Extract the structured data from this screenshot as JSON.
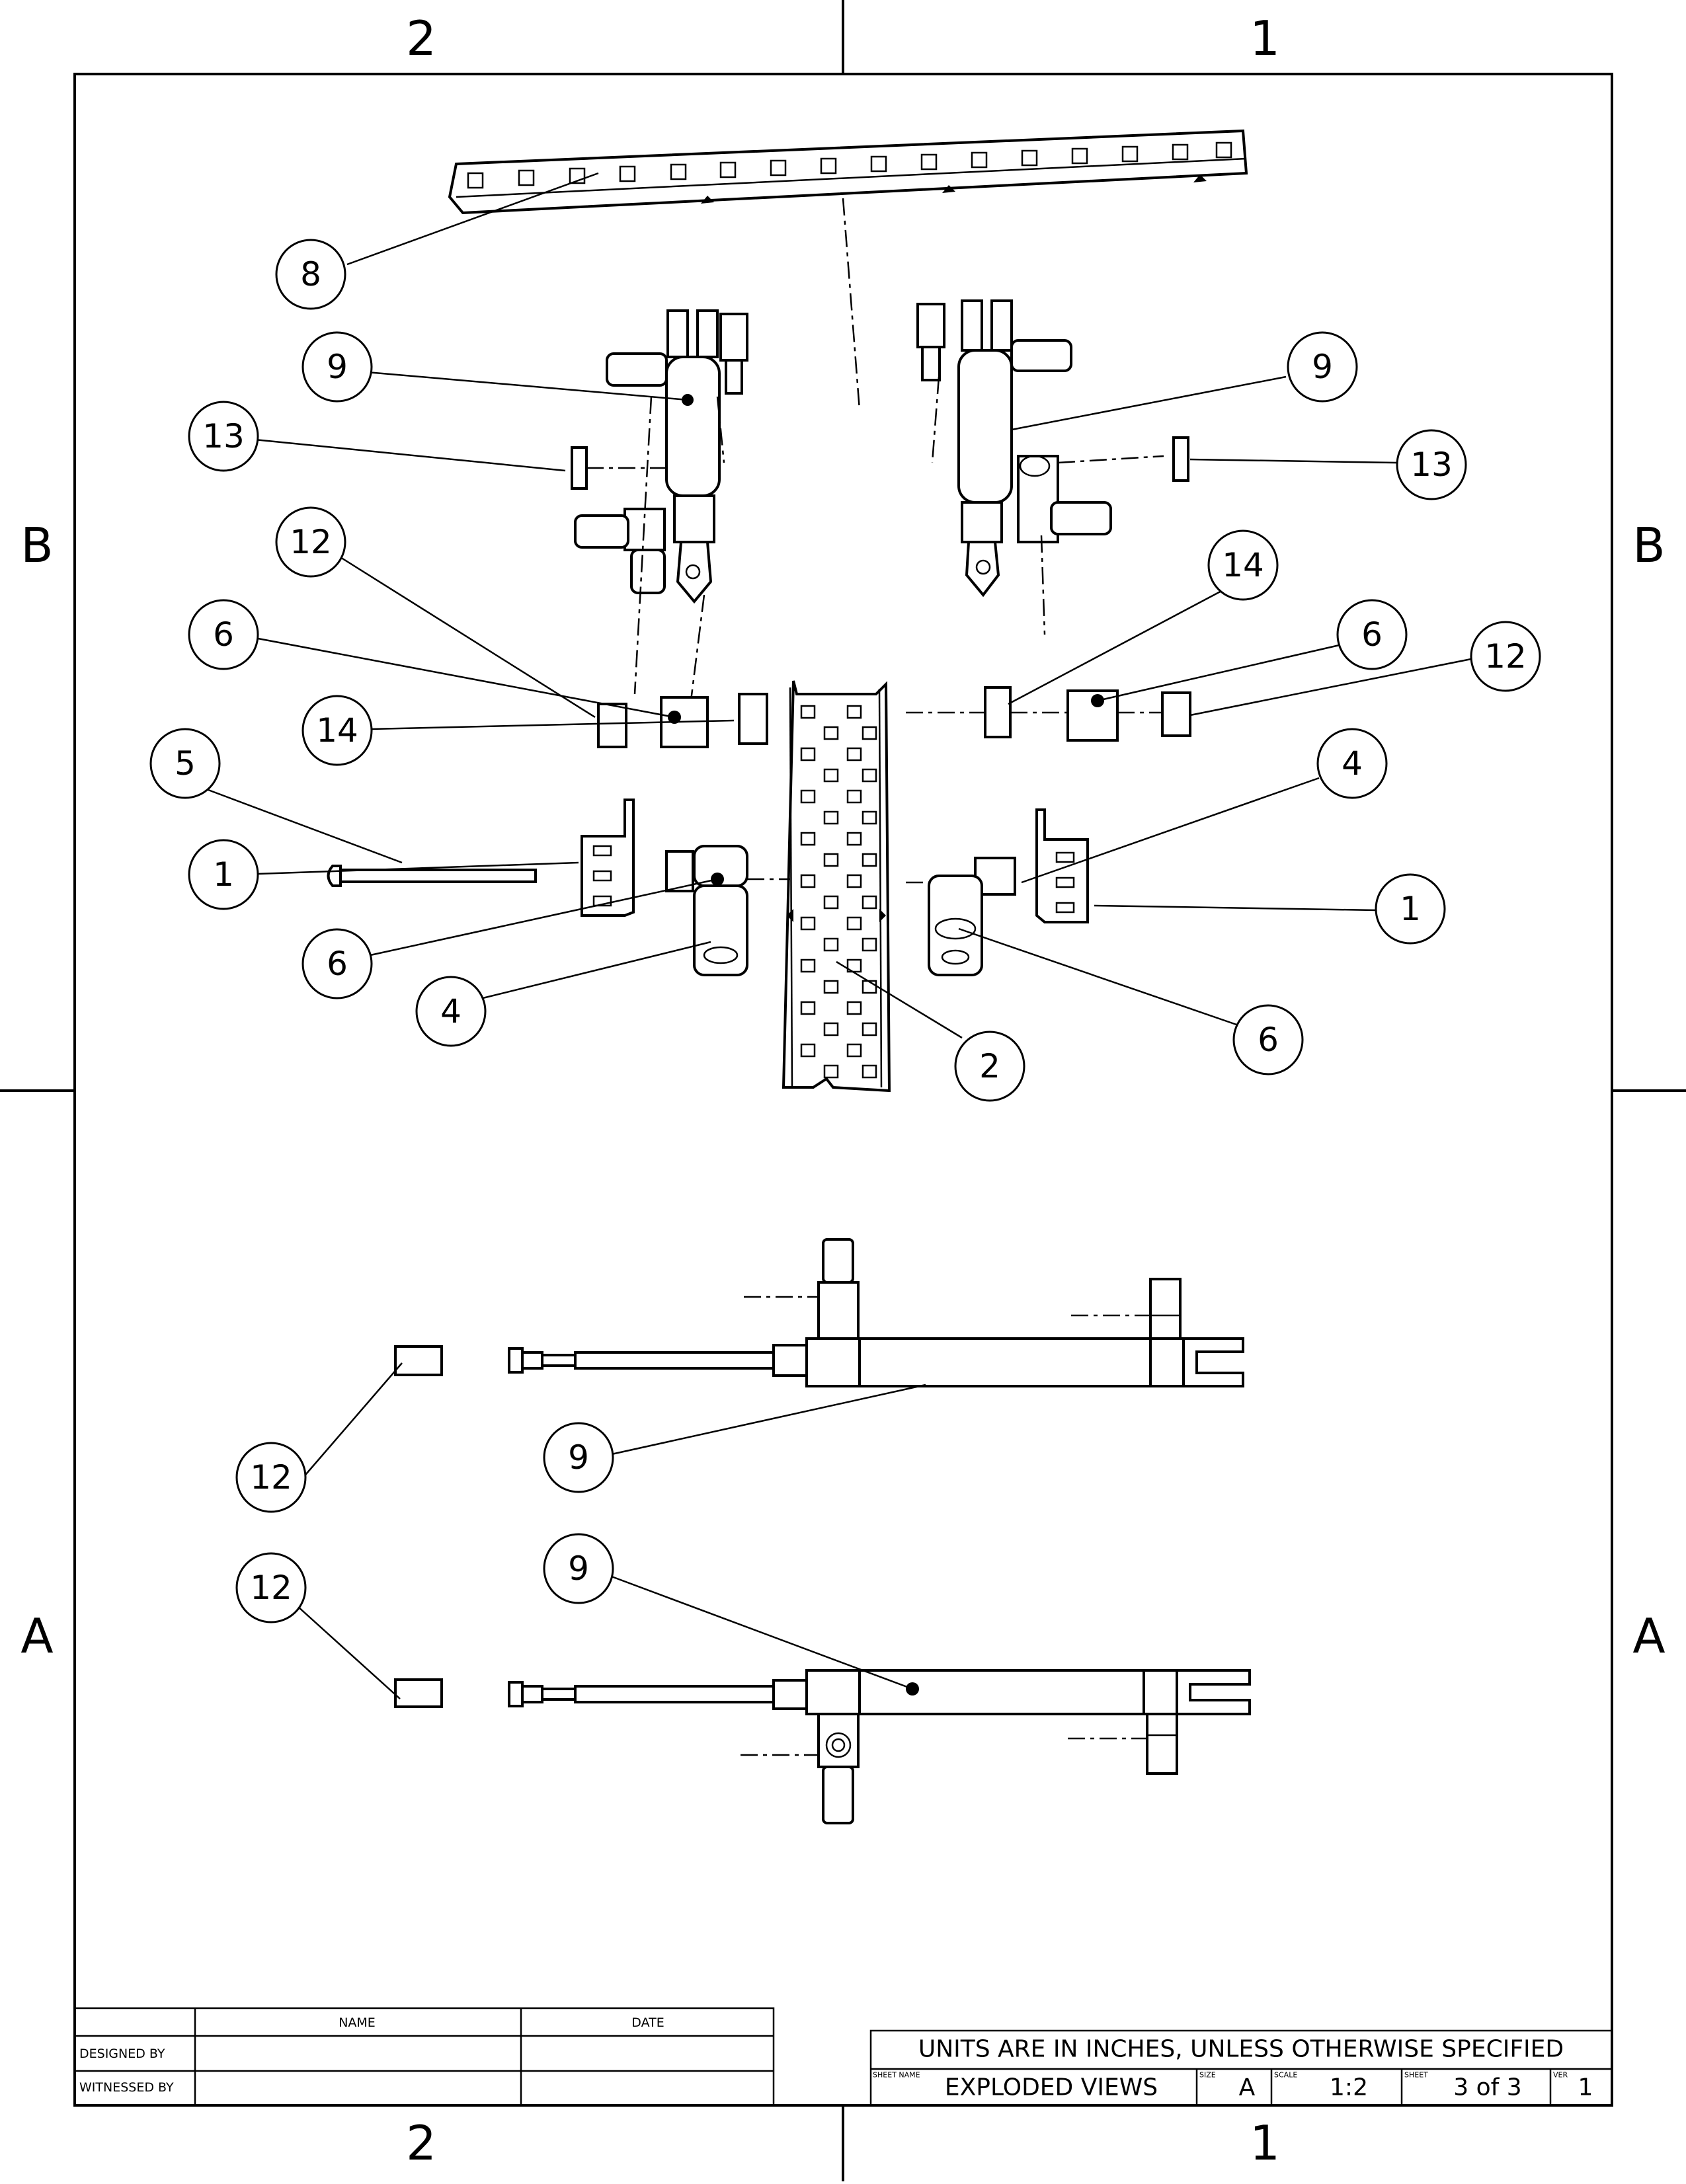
{
  "zones": {
    "top_left": "2",
    "top_right": "1",
    "bottom_left": "2",
    "bottom_right": "1",
    "left_upper": "B",
    "left_lower": "A",
    "right_upper": "B",
    "right_lower": "A"
  },
  "balloons": {
    "b8": "8",
    "b9_tl": "9",
    "b9_tr": "9",
    "b13_l": "13",
    "b13_r": "13",
    "b12_l": "12",
    "b14_r": "14",
    "b6_l": "6",
    "b6_r": "6",
    "b12_r": "12",
    "b14_l": "14",
    "b4_r": "4",
    "b5": "5",
    "b1_l": "1",
    "b1_r": "1",
    "b6_bl": "6",
    "b6_br": "6",
    "b4_l": "4",
    "b2": "2",
    "b12_side1": "12",
    "b9_side1": "9",
    "b12_side2": "12",
    "b9_side2": "9"
  },
  "signoff": {
    "name_header": "NAME",
    "date_header": "DATE",
    "designed_by": "DESIGNED BY",
    "witnessed_by": "WITNESSED BY"
  },
  "title_block": {
    "units_note": "UNITS ARE IN INCHES, UNLESS OTHERWISE SPECIFIED",
    "sheet_name_label": "SHEET NAME",
    "sheet_name": "EXPLODED VIEWS",
    "size_label": "SIZE",
    "size": "A",
    "scale_label": "SCALE",
    "scale": "1:2",
    "sheet_label": "SHEET",
    "sheet": "3 of 3",
    "ver_label": "VER",
    "ver": "1"
  }
}
